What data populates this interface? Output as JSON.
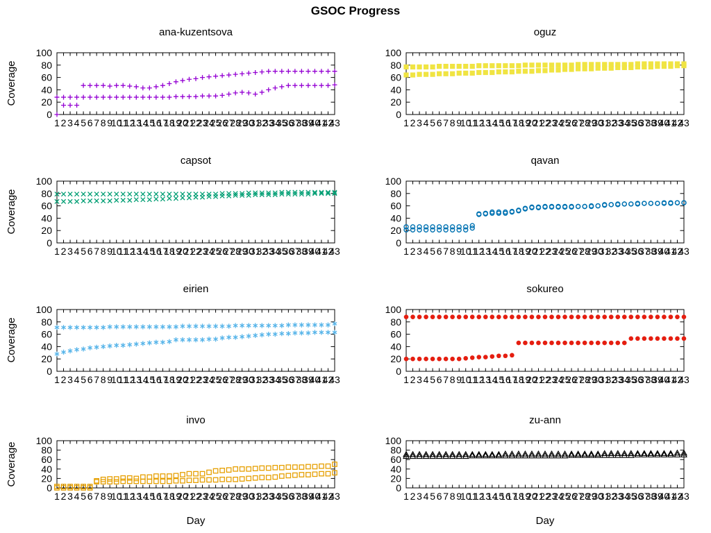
{
  "title": "GSOC Progress",
  "chart_data": [
    {
      "type": "scatter",
      "title": "ana-kuzentsova",
      "ylabel": "Coverage",
      "marker": "plus",
      "color": "#9400d3",
      "x_range": [
        1,
        43
      ],
      "y_range": [
        0,
        100
      ],
      "x_tick_step": 1,
      "y_tick_step": 20,
      "grid": false,
      "legend": "none",
      "series": [
        {
          "values": [
            0,
            15,
            15,
            15,
            47,
            47,
            47,
            47,
            46,
            47,
            47,
            46,
            45,
            43,
            43,
            45,
            47,
            50,
            53,
            55,
            57,
            58,
            60,
            61,
            62,
            63,
            64,
            65,
            66,
            67,
            68,
            69,
            70,
            70,
            70,
            70,
            70,
            70,
            70,
            70,
            70,
            70,
            70
          ]
        },
        {
          "values": [
            28,
            28,
            28,
            28,
            28,
            28,
            28,
            28,
            28,
            28,
            28,
            28,
            28,
            28,
            28,
            28,
            28,
            28,
            29,
            29,
            29,
            29,
            30,
            30,
            30,
            31,
            33,
            35,
            36,
            35,
            33,
            36,
            40,
            43,
            45,
            47,
            47,
            47,
            47,
            47,
            47,
            47,
            48
          ]
        }
      ]
    },
    {
      "type": "scatter",
      "title": "oguz",
      "marker": "filled-square",
      "color": "#f0e442",
      "x_range": [
        1,
        43
      ],
      "y_range": [
        0,
        100
      ],
      "x_tick_step": 1,
      "y_tick_step": 20,
      "grid": false,
      "legend": "none",
      "series": [
        {
          "values": [
            77,
            77,
            77,
            77,
            77,
            78,
            78,
            78,
            78,
            78,
            78,
            79,
            79,
            79,
            79,
            79,
            79,
            79,
            80,
            80,
            80,
            80,
            80,
            80,
            80,
            80,
            81,
            81,
            81,
            81,
            81,
            81,
            81,
            81,
            81,
            82,
            82,
            82,
            82,
            82,
            82,
            82,
            82
          ]
        },
        {
          "values": [
            64,
            64,
            65,
            65,
            65,
            66,
            66,
            66,
            67,
            67,
            67,
            68,
            68,
            68,
            69,
            69,
            69,
            70,
            70,
            70,
            71,
            71,
            72,
            72,
            73,
            73,
            74,
            74,
            74,
            75,
            75,
            75,
            76,
            76,
            76,
            77,
            77,
            77,
            78,
            78,
            78,
            79,
            79
          ]
        }
      ]
    },
    {
      "type": "scatter",
      "title": "capsot",
      "ylabel": "Coverage",
      "marker": "cross",
      "color": "#009e73",
      "x_range": [
        1,
        43
      ],
      "y_range": [
        0,
        100
      ],
      "x_tick_step": 1,
      "y_tick_step": 20,
      "grid": false,
      "legend": "none",
      "series": [
        {
          "values": [
            79,
            79,
            79,
            79,
            79,
            79,
            79,
            79,
            79,
            79,
            79,
            79,
            79,
            79,
            79,
            79,
            79,
            79,
            79,
            79,
            79,
            79,
            79,
            79,
            79,
            80,
            80,
            80,
            80,
            81,
            81,
            81,
            81,
            81,
            82,
            82,
            82,
            82,
            82,
            82,
            82,
            82,
            82
          ]
        },
        {
          "values": [
            67,
            67,
            67,
            67,
            68,
            68,
            68,
            68,
            68,
            69,
            69,
            69,
            70,
            70,
            70,
            71,
            71,
            72,
            72,
            73,
            73,
            74,
            74,
            75,
            75,
            76,
            76,
            77,
            77,
            77,
            78,
            78,
            78,
            78,
            79,
            79,
            79,
            79,
            79,
            80,
            80,
            80,
            80
          ]
        }
      ]
    },
    {
      "type": "scatter",
      "title": "qavan",
      "marker": "open-circle",
      "color": "#0072b2",
      "x_range": [
        1,
        43
      ],
      "y_range": [
        0,
        100
      ],
      "x_tick_step": 1,
      "y_tick_step": 20,
      "grid": false,
      "legend": "none",
      "series": [
        {
          "values": [
            26,
            26,
            26,
            26,
            26,
            26,
            26,
            26,
            26,
            26,
            28,
            47,
            48,
            50,
            50,
            50,
            51,
            53,
            56,
            58,
            58,
            59,
            59,
            59,
            59,
            59,
            59,
            59,
            60,
            60,
            62,
            62,
            63,
            63,
            63,
            64,
            64,
            64,
            64,
            65,
            65,
            65,
            65
          ]
        },
        {
          "values": [
            21,
            21,
            21,
            21,
            21,
            21,
            21,
            21,
            21,
            21,
            24,
            46,
            47,
            48,
            48,
            48,
            50,
            52,
            55,
            57,
            57,
            58,
            58,
            58,
            58,
            58,
            59,
            59,
            59,
            60,
            61,
            62,
            62,
            63,
            63,
            63,
            64,
            64,
            64,
            64,
            64,
            65,
            65
          ]
        }
      ]
    },
    {
      "type": "scatter",
      "title": "eirien",
      "ylabel": "Coverage",
      "marker": "asterisk",
      "color": "#56b4e9",
      "x_range": [
        1,
        43
      ],
      "y_range": [
        0,
        100
      ],
      "x_tick_step": 1,
      "y_tick_step": 20,
      "grid": false,
      "legend": "none",
      "series": [
        {
          "values": [
            71,
            71,
            71,
            71,
            71,
            71,
            71,
            71,
            72,
            72,
            72,
            72,
            72,
            72,
            72,
            72,
            72,
            72,
            72,
            73,
            73,
            73,
            73,
            73,
            73,
            73,
            73,
            74,
            74,
            74,
            74,
            74,
            74,
            74,
            74,
            75,
            75,
            75,
            75,
            75,
            75,
            75,
            77
          ]
        },
        {
          "values": [
            28,
            31,
            33,
            35,
            36,
            38,
            39,
            40,
            41,
            42,
            42,
            43,
            44,
            45,
            46,
            47,
            47,
            48,
            51,
            51,
            51,
            51,
            51,
            52,
            52,
            54,
            55,
            55,
            56,
            57,
            58,
            59,
            60,
            60,
            61,
            61,
            62,
            62,
            62,
            63,
            63,
            63,
            63
          ]
        }
      ]
    },
    {
      "type": "scatter",
      "title": "sokureo",
      "marker": "filled-circle",
      "color": "#e51e10",
      "x_range": [
        1,
        43
      ],
      "y_range": [
        0,
        100
      ],
      "x_tick_step": 1,
      "y_tick_step": 20,
      "grid": false,
      "legend": "none",
      "series": [
        {
          "values": [
            88,
            88,
            88,
            88,
            88,
            88,
            88,
            88,
            88,
            88,
            88,
            88,
            88,
            88,
            88,
            88,
            88,
            88,
            88,
            88,
            88,
            88,
            88,
            88,
            88,
            88,
            88,
            88,
            88,
            88,
            88,
            88,
            88,
            88,
            88,
            88,
            88,
            88,
            88,
            88,
            88,
            88,
            88
          ]
        },
        {
          "values": [
            20,
            20,
            20,
            20,
            20,
            20,
            20,
            20,
            20,
            21,
            22,
            23,
            23,
            24,
            25,
            25,
            26,
            46,
            46,
            46,
            46,
            46,
            46,
            46,
            46,
            46,
            46,
            46,
            46,
            46,
            46,
            46,
            46,
            46,
            53,
            53,
            53,
            53,
            53,
            53,
            53,
            53,
            53
          ]
        }
      ]
    },
    {
      "type": "scatter",
      "title": "invo",
      "ylabel": "Coverage",
      "xlabel": "Day",
      "marker": "open-square",
      "color": "#e69f00",
      "x_range": [
        1,
        43
      ],
      "y_range": [
        0,
        100
      ],
      "x_tick_step": 1,
      "y_tick_step": 20,
      "grid": false,
      "legend": "none",
      "series": [
        {
          "values": [
            3,
            3,
            3,
            3,
            3,
            3,
            15,
            18,
            19,
            19,
            21,
            21,
            20,
            23,
            23,
            25,
            25,
            25,
            26,
            28,
            30,
            30,
            30,
            33,
            36,
            37,
            38,
            40,
            40,
            40,
            41,
            42,
            42,
            43,
            43,
            44,
            44,
            44,
            45,
            45,
            46,
            46,
            50
          ]
        },
        {
          "values": [
            0,
            0,
            0,
            0,
            0,
            0,
            13,
            13,
            13,
            13,
            14,
            14,
            14,
            14,
            14,
            14,
            14,
            14,
            15,
            15,
            16,
            16,
            17,
            17,
            17,
            18,
            18,
            18,
            19,
            20,
            21,
            22,
            22,
            23,
            25,
            26,
            27,
            28,
            28,
            29,
            30,
            30,
            32
          ]
        }
      ]
    },
    {
      "type": "scatter",
      "title": "zu-ann",
      "xlabel": "Day",
      "marker": "open-triangle",
      "color": "#000000",
      "x_range": [
        1,
        43
      ],
      "y_range": [
        0,
        100
      ],
      "x_tick_step": 1,
      "y_tick_step": 20,
      "grid": false,
      "legend": "none",
      "series": [
        {
          "values": [
            71,
            71,
            71,
            71,
            71,
            71,
            71,
            71,
            71,
            71,
            71,
            71,
            71,
            71,
            71,
            72,
            72,
            72,
            72,
            72,
            72,
            72,
            72,
            72,
            72,
            72,
            72,
            72,
            72,
            72,
            73,
            73,
            73,
            73,
            73,
            73,
            73,
            73,
            73,
            73,
            73,
            74,
            74
          ]
        },
        {
          "values": [
            67,
            67,
            67,
            67,
            67,
            67,
            67,
            67,
            67,
            67,
            68,
            68,
            68,
            68,
            68,
            68,
            68,
            68,
            68,
            68,
            68,
            68,
            68,
            68,
            68,
            69,
            69,
            69,
            69,
            69,
            69,
            69,
            69,
            69,
            69,
            70,
            70,
            70,
            70,
            70,
            70,
            70,
            70
          ]
        }
      ]
    }
  ]
}
